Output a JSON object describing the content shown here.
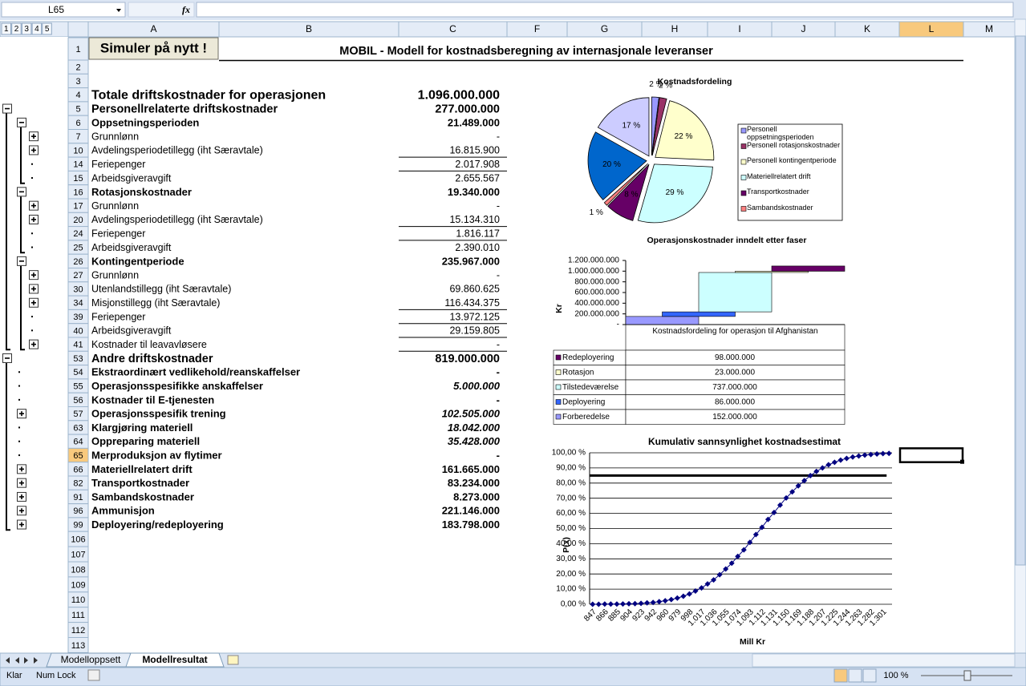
{
  "formula_bar": {
    "name_box": "L65",
    "function_icon": "fx"
  },
  "outline_levels": [
    "1",
    "2",
    "3",
    "4",
    "5"
  ],
  "columns": [
    "A",
    "B",
    "C",
    "F",
    "G",
    "H",
    "I",
    "J",
    "K",
    "L",
    "M"
  ],
  "button": "Simuler på nytt !",
  "sheet_title": "MOBIL - Modell for kostnadsberegning av internasjonale leveranser",
  "rows": [
    {
      "number": "1"
    },
    {
      "number": "2"
    },
    {
      "number": "3"
    },
    {
      "number": "4",
      "label": "Totale driftskostnader for operasjonen",
      "value": "1.096.000.000"
    },
    {
      "number": "5",
      "label": "Personellrelaterte driftskostnader",
      "value": "277.000.000"
    },
    {
      "number": "6",
      "label": "Oppsetningsperioden",
      "value": "21.489.000"
    },
    {
      "number": "7",
      "label": "Grunnlønn",
      "value": "-"
    },
    {
      "number": "10",
      "label": "Avdelingsperiodetillegg (iht Særavtale)",
      "value": "16.815.900"
    },
    {
      "number": "14",
      "label": "Feriepenger",
      "value": "2.017.908"
    },
    {
      "number": "15",
      "label": "Arbeidsgiveravgift",
      "value": "2.655.567"
    },
    {
      "number": "16",
      "label": "Rotasjonskostnader",
      "value": "19.340.000"
    },
    {
      "number": "17",
      "label": "Grunnlønn",
      "value": "-"
    },
    {
      "number": "20",
      "label": "Avdelingsperiodetillegg (iht Særavtale)",
      "value": "15.134.310"
    },
    {
      "number": "24",
      "label": "Feriepenger",
      "value": "1.816.117"
    },
    {
      "number": "25",
      "label": "Arbeidsgiveravgift",
      "value": "2.390.010"
    },
    {
      "number": "26",
      "label": "Kontingentperiode",
      "value": "235.967.000"
    },
    {
      "number": "27",
      "label": "Grunnlønn",
      "value": "-"
    },
    {
      "number": "30",
      "label": "Utenlandstillegg (iht Særavtale)",
      "value": "69.860.625"
    },
    {
      "number": "34",
      "label": "Misjonstillegg (iht Særavtale)",
      "value": "116.434.375"
    },
    {
      "number": "39",
      "label": "Feriepenger",
      "value": "13.972.125"
    },
    {
      "number": "40",
      "label": "Arbeidsgiveravgift",
      "value": "29.159.805"
    },
    {
      "number": "41",
      "label": "Kostnader til leavavløsere",
      "value": "-"
    },
    {
      "number": "53",
      "label": "Andre driftskostnader",
      "value": "819.000.000"
    },
    {
      "number": "54",
      "label": "Ekstraordinært vedlikehold/reanskaffelser",
      "value": "-"
    },
    {
      "number": "55",
      "label": "Operasjonsspesifikke anskaffelser",
      "value": "5.000.000"
    },
    {
      "number": "56",
      "label": "Kostnader til E-tjenesten",
      "value": "-"
    },
    {
      "number": "57",
      "label": "Operasjonsspesifik trening",
      "value": "102.505.000"
    },
    {
      "number": "63",
      "label": "Klargjøring materiell",
      "value": "18.042.000"
    },
    {
      "number": "64",
      "label": "Oppreparing materiell",
      "value": "35.428.000"
    },
    {
      "number": "65",
      "label": "Merproduksjon av flytimer",
      "value": "-"
    },
    {
      "number": "66",
      "label": "Materiellrelatert drift",
      "value": "161.665.000"
    },
    {
      "number": "82",
      "label": "Transportkostnader",
      "value": "83.234.000"
    },
    {
      "number": "91",
      "label": "Sambandskostnader",
      "value": "8.273.000"
    },
    {
      "number": "96",
      "label": "Ammunisjon",
      "value": "221.146.000"
    },
    {
      "number": "99",
      "label": "Deployering/redeployering",
      "value": "183.798.000"
    },
    {
      "number": "106"
    },
    {
      "number": "107"
    },
    {
      "number": "108"
    },
    {
      "number": "109"
    },
    {
      "number": "110"
    },
    {
      "number": "111"
    },
    {
      "number": "112"
    },
    {
      "number": "113"
    }
  ],
  "charts": [
    {
      "type": "pie",
      "title": "Kostnadsfordeling",
      "categories": [
        "Personell oppsetningsperioden",
        "Personell rotasjonskostnader",
        "Personell kontingentperiode",
        "Materiellrelatert drift",
        "Transportkostnader",
        "Sambandskostnader",
        null,
        null
      ],
      "values": [
        2,
        2,
        22,
        29,
        8,
        1,
        20,
        17
      ],
      "value_labels": [
        "2 %",
        "2 %",
        "22 %",
        "29 %",
        "8 %",
        "1 %",
        "20 %",
        "17 %"
      ],
      "colors": [
        "#9999ff",
        "#993366",
        "#ffffcc",
        "#ccffff",
        "#660066",
        "#ff8080",
        "#0066cc",
        "#ccccff"
      ]
    },
    {
      "type": "waterfall",
      "title": "Operasjonskostnader inndelt etter faser",
      "y_label": "Kr",
      "categories": [
        "Kostnadsfordeling for operasjon til Afghanistan"
      ],
      "series": [
        {
          "name": "Redeployering",
          "color": "#660066",
          "values": [
            98000000
          ],
          "value_labels": [
            "98.000.000"
          ]
        },
        {
          "name": "Rotasjon",
          "color": "#ffffcc",
          "values": [
            23000000
          ],
          "value_labels": [
            "23.000.000"
          ]
        },
        {
          "name": "Tilstedeværelse",
          "color": "#ccffff",
          "values": [
            737000000
          ],
          "value_labels": [
            "737.000.000"
          ]
        },
        {
          "name": "Deployering",
          "color": "#3366ff",
          "values": [
            86000000
          ],
          "value_labels": [
            "86.000.000"
          ]
        },
        {
          "name": "Forberedelse",
          "color": "#9999ff",
          "values": [
            152000000
          ],
          "value_labels": [
            "152.000.000"
          ]
        }
      ],
      "ylim": [
        0,
        1200000000
      ],
      "yticks": [
        {
          "value": 0,
          "label": "-"
        },
        {
          "value": 200000000,
          "label": "200.000.000"
        },
        {
          "value": 400000000,
          "label": "400.000.000"
        },
        {
          "value": 600000000,
          "label": "600.000.000"
        },
        {
          "value": 800000000,
          "label": "800.000.000"
        },
        {
          "value": 1000000000,
          "label": "1.000.000.000"
        },
        {
          "value": 1200000000,
          "label": "1.200.000.000"
        }
      ]
    },
    {
      "type": "line",
      "title": "Kumulativ sannsynlighet  kostnadsestimat",
      "x_label": "Mill Kr",
      "y_label": "P(x)",
      "categories": [
        "847",
        null,
        "866",
        null,
        "885",
        null,
        "904",
        null,
        "923",
        null,
        "942",
        null,
        "960",
        null,
        "979",
        null,
        "998",
        null,
        "1.017",
        null,
        "1.036",
        null,
        "1.055",
        null,
        "1.074",
        null,
        "1.093",
        null,
        "1.112",
        null,
        "1.131",
        null,
        "1.150",
        null,
        "1.169",
        null,
        "1.188",
        null,
        "1.207",
        null,
        "1.225",
        null,
        "1.244",
        null,
        "1.263",
        null,
        "1.282",
        null,
        "1.301",
        null
      ],
      "series": [
        {
          "color": "#000080",
          "values": [
            0.0,
            0.0,
            0.1,
            0.1,
            0.1,
            0.2,
            0.3,
            0.4,
            0.6,
            0.9,
            1.2,
            1.7,
            2.3,
            3.1,
            4.1,
            5.3,
            6.8,
            8.7,
            10.8,
            13.4,
            16.1,
            19.5,
            23.3,
            27.1,
            31.6,
            35.9,
            40.9,
            46.0,
            50.8,
            56.0,
            60.6,
            65.5,
            70.2,
            74.2,
            78.2,
            81.6,
            84.9,
            87.7,
            90.0,
            92.1,
            93.7,
            95.2,
            96.3,
            97.2,
            97.9,
            98.5,
            98.9,
            99.2,
            99.5,
            99.6
          ]
        }
      ],
      "ylim": [
        0,
        100
      ],
      "yticks": [
        {
          "value": 0,
          "label": "0,00 %"
        },
        {
          "value": 10,
          "label": "10,00 %"
        },
        {
          "value": 20,
          "label": "20,00 %"
        },
        {
          "value": 30,
          "label": "30,00 %"
        },
        {
          "value": 40,
          "label": "40,00 %"
        },
        {
          "value": 50,
          "label": "50,00 %"
        },
        {
          "value": 60,
          "label": "60,00 %"
        },
        {
          "value": 70,
          "label": "70,00 %"
        },
        {
          "value": 80,
          "label": "80,00 %"
        },
        {
          "value": 90,
          "label": "90,00 %"
        },
        {
          "value": 100,
          "label": "100,00 %"
        }
      ],
      "reference_line": {
        "value": 85,
        "color": "#000000"
      }
    }
  ],
  "sheet_tabs": [
    "Modelloppsett",
    "Modellresultat"
  ],
  "status_bar": {
    "ready": "Klar",
    "num_lock": "Num Lock",
    "zoom": "100 %"
  }
}
